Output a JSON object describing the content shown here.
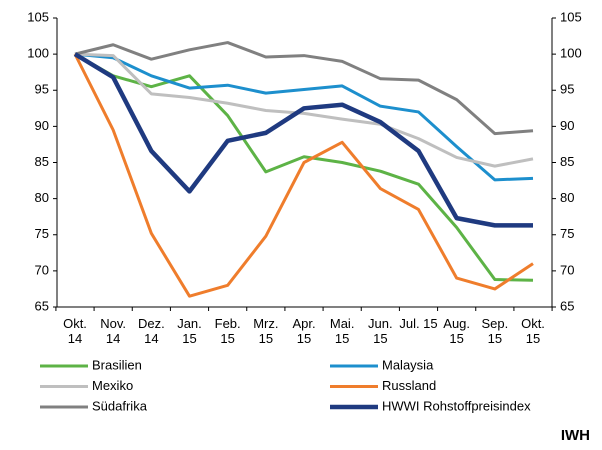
{
  "chart_data": {
    "type": "line",
    "branding": "IWH",
    "categories": [
      "Okt. 14",
      "Nov. 14",
      "Dez. 14",
      "Jan. 15",
      "Feb. 15",
      "Mrz. 15",
      "Apr. 15",
      "Mai. 15",
      "Jun. 15",
      "Jul. 15",
      "Aug. 15",
      "Sep. 15",
      "Okt. 15"
    ],
    "series": [
      {
        "name": "Brasilien",
        "color": "#5db346",
        "values": [
          100,
          97,
          95.5,
          97,
          91.5,
          83.7,
          85.8,
          85,
          83.8,
          82,
          76,
          68.8,
          68.7
        ]
      },
      {
        "name": "Malaysia",
        "color": "#1d8fcd",
        "values": [
          100,
          99.5,
          97,
          95.3,
          95.7,
          94.6,
          95.1,
          95.6,
          92.8,
          92,
          87.2,
          82.6,
          82.8
        ]
      },
      {
        "name": "Mexiko",
        "color": "#bfbfbf",
        "values": [
          100,
          99.8,
          94.5,
          94,
          93.2,
          92.2,
          91.8,
          91,
          90.3,
          88.3,
          85.7,
          84.5,
          85.5
        ]
      },
      {
        "name": "Russland",
        "color": "#ef7d2c",
        "values": [
          100,
          89.5,
          75.2,
          66.5,
          68,
          74.8,
          85,
          87.8,
          81.4,
          78.5,
          69,
          67.5,
          71
        ]
      },
      {
        "name": "Südafrika",
        "color": "#808080",
        "values": [
          100,
          101.3,
          99.3,
          100.6,
          101.6,
          99.6,
          99.8,
          99,
          96.6,
          96.4,
          93.7,
          89,
          89.4
        ]
      },
      {
        "name": "HWWI Rohstoffpreisindex",
        "color": "#1f3a80",
        "values": [
          100,
          96.8,
          86.6,
          81,
          88,
          89.1,
          92.5,
          93,
          90.6,
          86.6,
          77.3,
          76.3,
          76.3
        ]
      }
    ],
    "ylim": [
      65,
      105
    ],
    "yticks": [
      65,
      70,
      75,
      80,
      85,
      90,
      95,
      100,
      105
    ],
    "y2lim": [
      65,
      105
    ],
    "y2ticks": [
      65,
      70,
      75,
      80,
      85,
      90,
      95,
      100,
      105
    ],
    "grid": false
  }
}
